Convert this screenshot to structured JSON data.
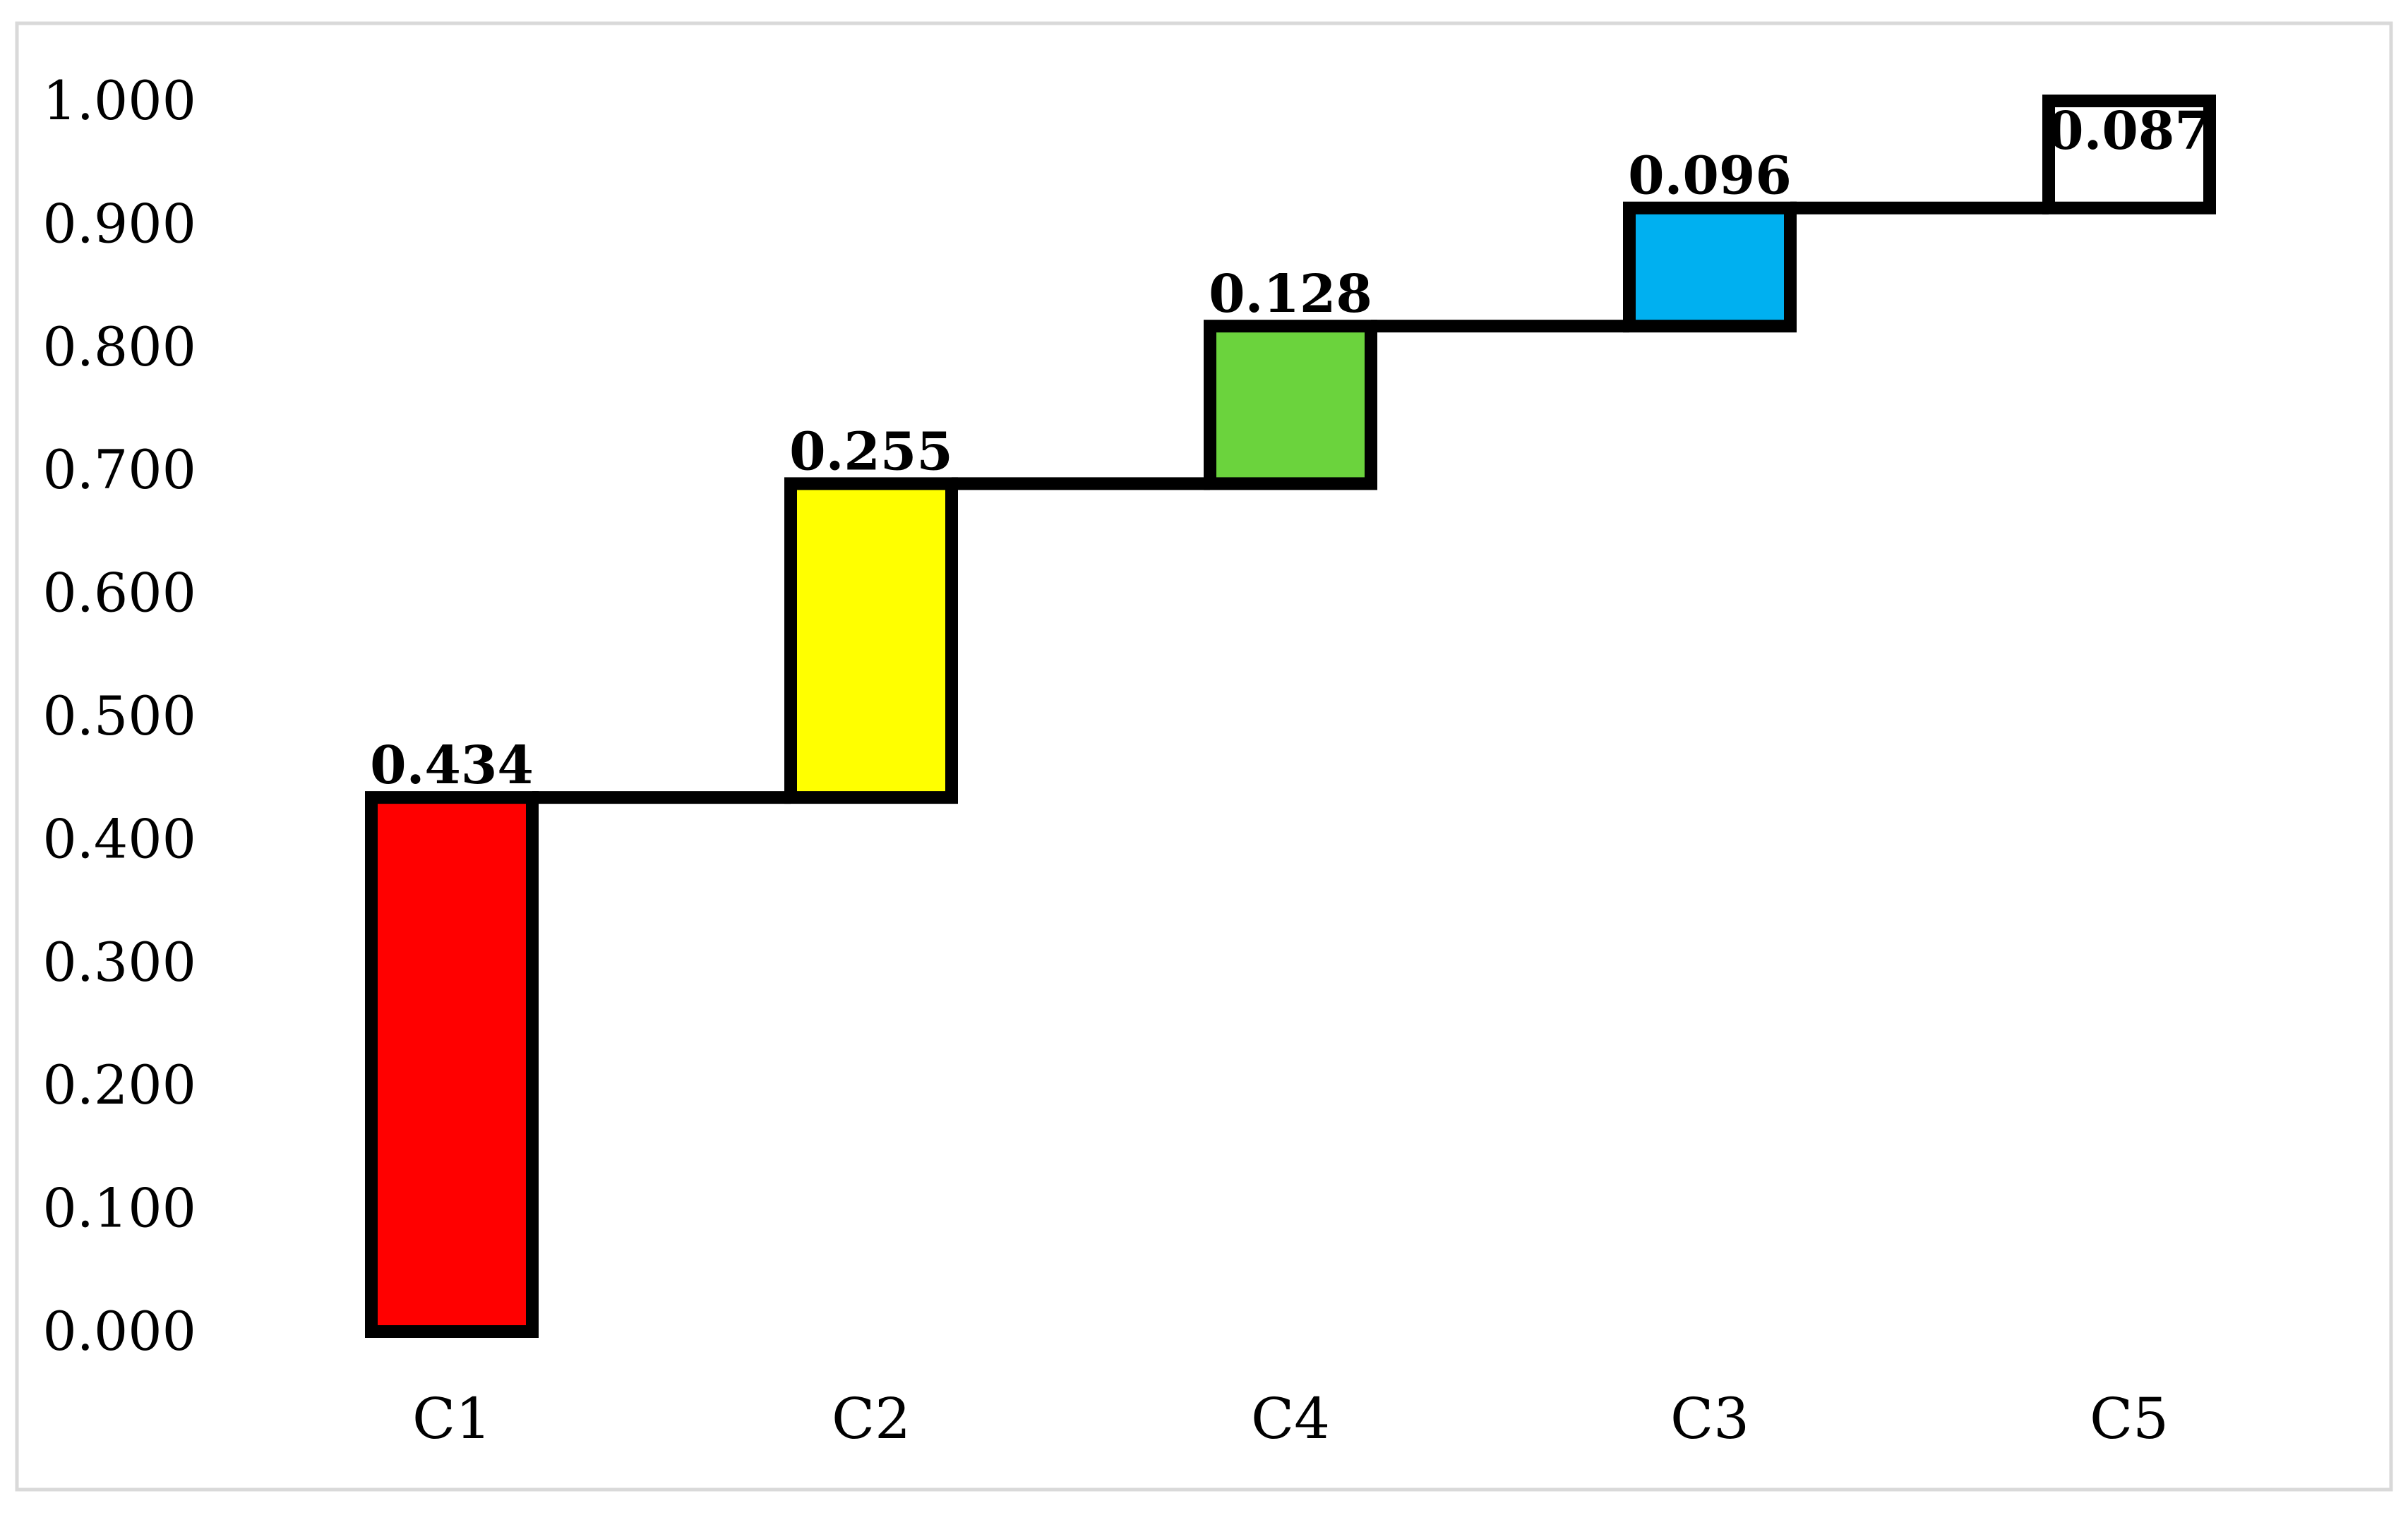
{
  "chart_data": {
    "type": "bar",
    "subtype": "waterfall",
    "title": "",
    "xlabel": "",
    "ylabel": "",
    "categories": [
      "C1",
      "C2",
      "C4",
      "C3",
      "C5"
    ],
    "values": [
      0.434,
      0.255,
      0.128,
      0.096,
      0.087
    ],
    "value_labels": [
      "0.434",
      "0.255",
      "0.128",
      "0.096",
      "0.087"
    ],
    "colors": [
      "#ff0000",
      "#ffff00",
      "#6bd33d",
      "#00b0f0",
      "#ffffff"
    ],
    "ylim": [
      0,
      1
    ],
    "yticks": [
      "0.000",
      "0.100",
      "0.200",
      "0.300",
      "0.400",
      "0.500",
      "0.600",
      "0.700",
      "0.800",
      "0.900",
      "1.000"
    ],
    "grid": false,
    "legend": "none",
    "border_color": "#000000",
    "frame_color": "#d9d9d9"
  }
}
